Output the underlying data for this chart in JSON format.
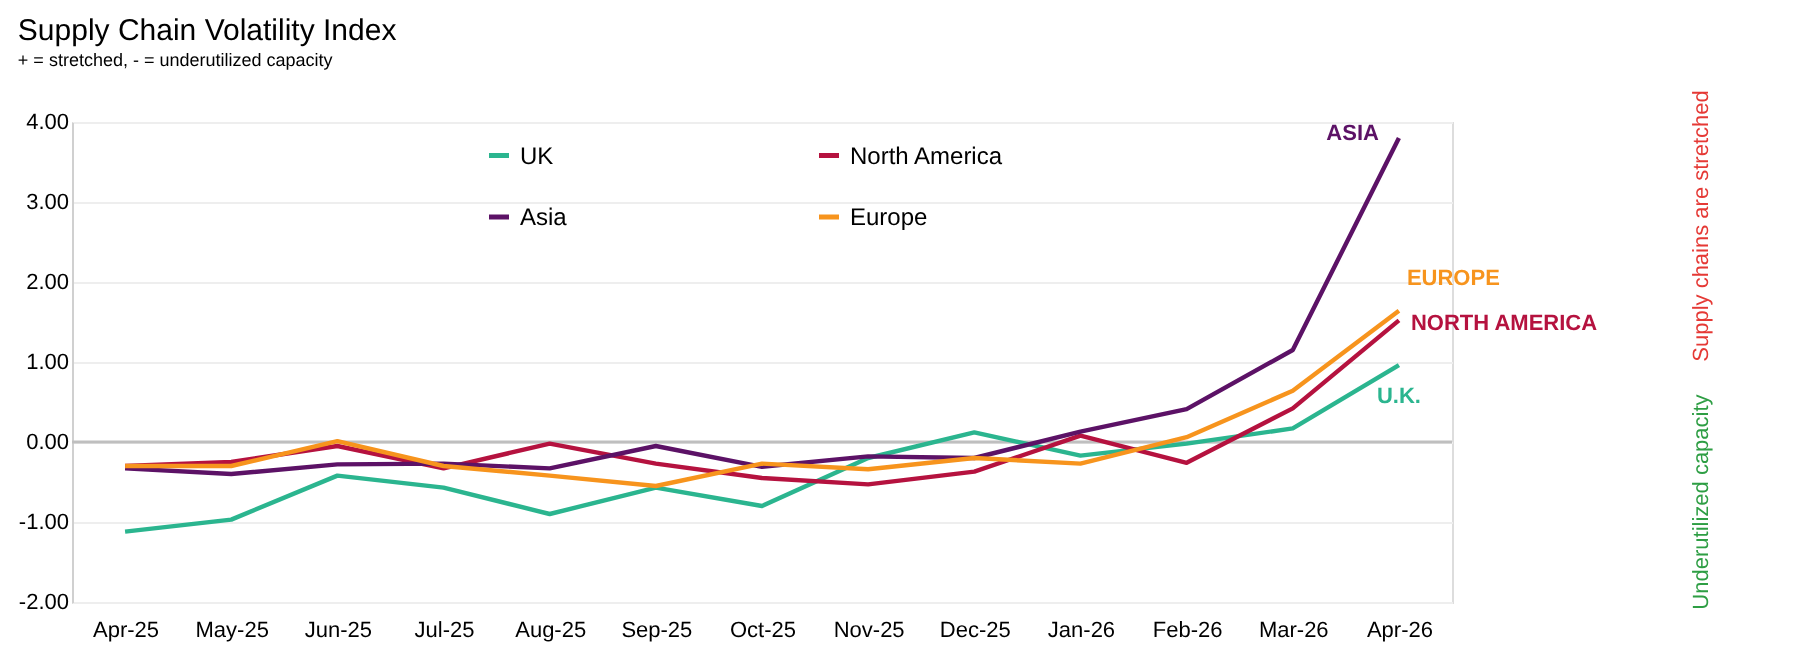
{
  "chart_data": {
    "type": "line",
    "title": "Supply Chain Volatility Index",
    "subtitle": "+ = stretched, - = underutilized capacity",
    "categories": [
      "Apr-25",
      "May-25",
      "Jun-25",
      "Jul-25",
      "Aug-25",
      "Sep-25",
      "Oct-25",
      "Nov-25",
      "Dec-25",
      "Jan-26",
      "Feb-26",
      "Mar-26",
      "Apr-26"
    ],
    "series": [
      {
        "name": "UK",
        "color": "#2bb58f",
        "values": [
          -1.12,
          -0.97,
          -0.42,
          -0.57,
          -0.9,
          -0.57,
          -0.8,
          -0.2,
          0.12,
          -0.17,
          -0.02,
          0.17,
          0.96
        ]
      },
      {
        "name": "North America",
        "color": "#b5123f",
        "values": [
          -0.3,
          -0.25,
          -0.05,
          -0.33,
          -0.02,
          -0.27,
          -0.45,
          -0.53,
          -0.37,
          0.08,
          -0.26,
          0.42,
          1.52
        ]
      },
      {
        "name": "Asia",
        "color": "#5c1266",
        "values": [
          -0.33,
          -0.4,
          -0.28,
          -0.27,
          -0.33,
          -0.05,
          -0.31,
          -0.18,
          -0.2,
          0.13,
          0.41,
          1.15,
          3.8
        ]
      },
      {
        "name": "Europe",
        "color": "#f7941d",
        "values": [
          -0.3,
          -0.3,
          0.01,
          -0.3,
          -0.42,
          -0.55,
          -0.27,
          -0.34,
          -0.2,
          -0.27,
          0.06,
          0.64,
          1.64
        ]
      }
    ],
    "ylim": [
      -2,
      4
    ],
    "yticks": [
      {
        "value": -2,
        "label": "-2.00"
      },
      {
        "value": -1,
        "label": "-1.00"
      },
      {
        "value": 0,
        "label": "0.00"
      },
      {
        "value": 1,
        "label": "1.00"
      },
      {
        "value": 2,
        "label": "2.00"
      },
      {
        "value": 3,
        "label": "3.00"
      },
      {
        "value": 4,
        "label": "4.00"
      }
    ],
    "grid": "y",
    "legend": "top",
    "line_style": "solid",
    "marker": "none",
    "ref_lines": [
      {
        "axis": "y",
        "value": 0,
        "color": "#bfbfbf"
      }
    ],
    "annotations": [
      {
        "text": "ASIA",
        "x": "Apr-26",
        "y": 3.8
      },
      {
        "text": "EUROPE",
        "x": "Apr-26",
        "y": 1.64
      },
      {
        "text": "NORTH AMERICA",
        "x": "Apr-26",
        "y": 1.52
      },
      {
        "text": "U.K.",
        "x": "Apr-26",
        "y": 0.96
      },
      "Supply chains are stretched",
      "Underutilized capacity"
    ]
  }
}
